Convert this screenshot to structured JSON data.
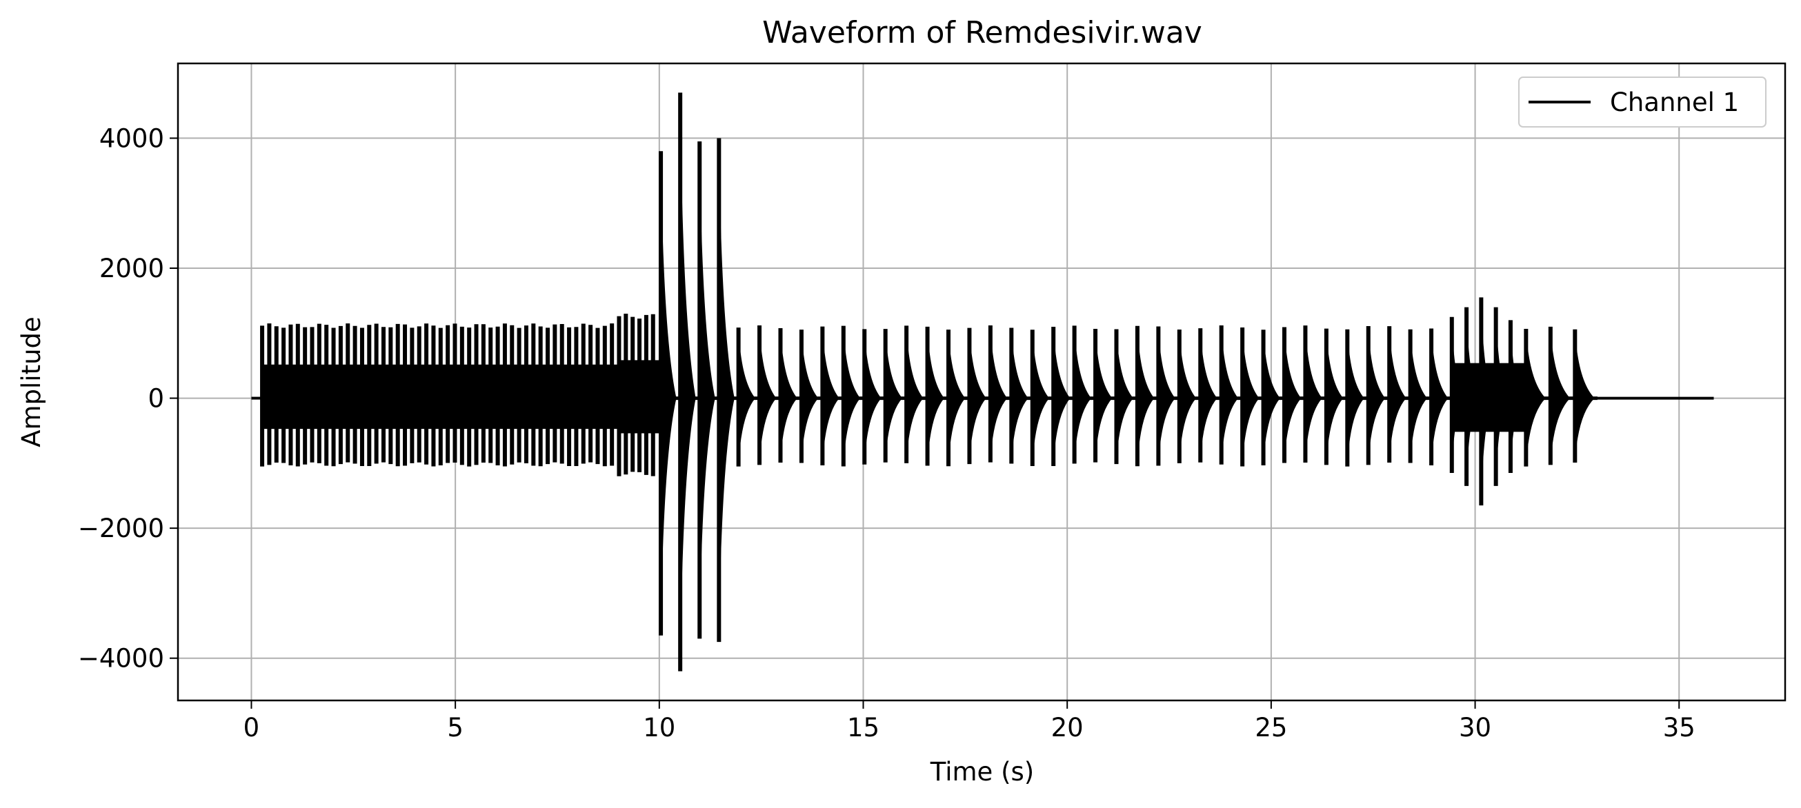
{
  "chart_data": {
    "type": "line",
    "title": "Waveform of Remdesivir.wav",
    "xlabel": "Time (s)",
    "ylabel": "Amplitude",
    "xlim": [
      -1.8,
      37.6
    ],
    "ylim": [
      -4650,
      5150
    ],
    "xticks": [
      0,
      5,
      10,
      15,
      20,
      25,
      30,
      35
    ],
    "xtick_labels": [
      "0",
      "5",
      "10",
      "15",
      "20",
      "25",
      "30",
      "35"
    ],
    "yticks": [
      -4000,
      -2000,
      0,
      2000,
      4000
    ],
    "ytick_labels": [
      "−4000",
      "−2000",
      "0",
      "2000",
      "4000"
    ],
    "grid": true,
    "legend": {
      "position": "top-right",
      "entries": [
        "Channel 1"
      ]
    },
    "series": [
      {
        "name": "Channel 1",
        "color": "#000000",
        "silence_before": [
          0.0,
          0.25
        ],
        "silence_after": [
          33.0,
          35.85
        ],
        "segments": [
          {
            "start": 0.25,
            "end": 9.0,
            "pulses": 50,
            "peak": 1150,
            "trough": -1050,
            "dense": true
          },
          {
            "start": 9.0,
            "end": 10.0,
            "pulses": 6,
            "peak": 1300,
            "trough": -1200,
            "dense": true
          },
          {
            "start": 10.0,
            "end": 11.9,
            "pulses": 4,
            "peak": [
              3800,
              4700,
              3950,
              4000
            ],
            "trough": [
              -3650,
              -4200,
              -3700,
              -3750
            ],
            "dense": false
          },
          {
            "start": 11.9,
            "end": 29.4,
            "pulses": 34,
            "peak": 1120,
            "trough": -1050,
            "dense": false
          },
          {
            "start": 29.4,
            "end": 31.2,
            "pulses": 5,
            "peak": [
              1250,
              1400,
              1550,
              1400,
              1200
            ],
            "trough": [
              -1150,
              -1350,
              -1650,
              -1350,
              -1150
            ],
            "dense": true
          },
          {
            "start": 31.2,
            "end": 33.0,
            "pulses": 3,
            "peak": 1100,
            "trough": -1050,
            "dense": false
          }
        ]
      }
    ]
  }
}
